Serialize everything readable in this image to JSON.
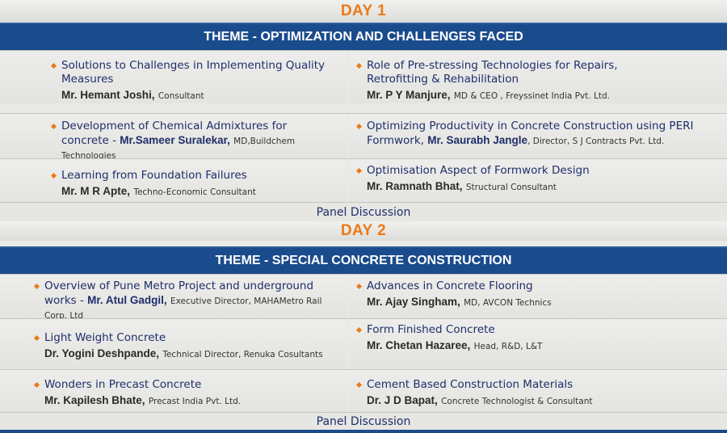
{
  "day1": {
    "label": "DAY 1",
    "theme": "THEME - OPTIMIZATION AND CHALLENGES FACED",
    "rows": [
      {
        "left": {
          "title": "Solutions to Challenges in Implementing Quality Measures",
          "speaker": "Mr. Hemant Joshi,",
          "role": "Consultant"
        },
        "right": {
          "title": "Role of Pre-stressing Technologies for Repairs, Retrofitting & Rehabilitation",
          "speaker": "Mr. P Y Manjure,",
          "role": "MD & CEO , Freyssinet India Pvt. Ltd."
        }
      },
      {
        "left": {
          "title": "Development of Chemical Admixtures for concrete - ",
          "speaker": "Mr.Sameer Suralekar,",
          "role": "MD,Buildchem Technologies"
        },
        "right": {
          "title": "Optimizing Productivity in Concrete Construction using PERI Formwork, ",
          "speaker": "Mr. Saurabh Jangle",
          "role": ", Director, S J Contracts Pvt. Ltd."
        }
      },
      {
        "left": {
          "title": "Learning from Foundation Failures",
          "speaker": "Mr. M R Apte,",
          "role": "Techno-Economic Consultant"
        },
        "right": {
          "title": "Optimisation Aspect of Formwork Design",
          "speaker": "Mr. Ramnath Bhat,",
          "role": "Structural Consultant"
        }
      }
    ],
    "panel": "Panel Discussion"
  },
  "day2": {
    "label": "DAY 2",
    "theme": "THEME - SPECIAL CONCRETE CONSTRUCTION",
    "rows": [
      {
        "left": {
          "title": "Overview of Pune Metro Project and underground works - ",
          "speaker": "Mr. Atul Gadgil,",
          "role": "Executive Director, MAHAMetro Rail Corp. Ltd"
        },
        "right": {
          "title": "Advances in Concrete Flooring",
          "speaker": "Mr. Ajay Singham,",
          "role": "MD, AVCON Technics"
        }
      },
      {
        "left": {
          "title": "Light Weight Concrete",
          "speaker": "Dr. Yogini Deshpande,",
          "role": "Technical Director, Renuka Cosultants"
        },
        "right": {
          "title": "Form Finished Concrete",
          "speaker": "Mr. Chetan Hazaree,",
          "role": "Head, R&D, L&T"
        }
      },
      {
        "left": {
          "title": "Wonders in Precast Concrete",
          "speaker": "Mr. Kapilesh Bhate,",
          "role": "Precast India Pvt. Ltd."
        },
        "right": {
          "title": "Cement Based Construction Materials",
          "speaker": "Dr. J D Bapat,",
          "role": "Concrete Technologist & Consultant"
        }
      }
    ],
    "panel": "Panel Discussion"
  },
  "colors": {
    "accent": "#ec7a16",
    "theme_bar": "#1a4b8c",
    "text": "#1f2e6a"
  }
}
